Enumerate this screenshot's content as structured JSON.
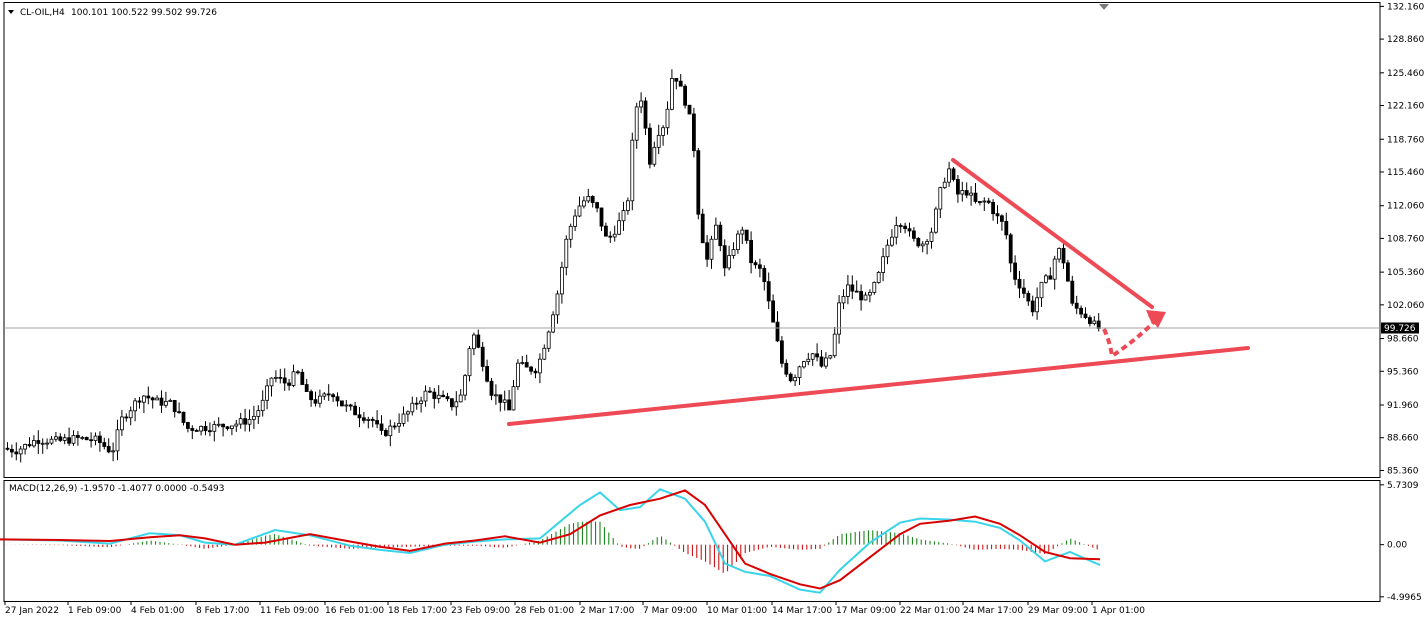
{
  "chart_data": [
    {
      "type": "candlestick",
      "symbol_header": "CL-OIL,H4",
      "ohlc_header": "100.101 100.522 99.502 99.726",
      "current_price": "99.726",
      "y_ticks": [
        "132.160",
        "128.860",
        "125.460",
        "122.160",
        "118.760",
        "115.460",
        "112.060",
        "108.760",
        "105.360",
        "102.060",
        "98.660",
        "95.360",
        "91.960",
        "88.660",
        "85.360"
      ],
      "ylim": [
        84.8,
        132.4
      ],
      "x_ticks": [
        "27 Jan 2022",
        "1 Feb 09:00",
        "4 Feb 01:00",
        "8 Feb 17:00",
        "11 Feb 09:00",
        "16 Feb 01:00",
        "18 Feb 17:00",
        "23 Feb 09:00",
        "28 Feb 01:00",
        "2 Mar 17:00",
        "7 Mar 09:00",
        "10 Mar 01:00",
        "14 Mar 17:00",
        "17 Mar 09:00",
        "22 Mar 01:00",
        "24 Mar 17:00",
        "29 Mar 09:00",
        "1 Apr 01:00"
      ],
      "price_path": [
        [
          0,
          87.6
        ],
        [
          20,
          87.4
        ],
        [
          40,
          88.5
        ],
        [
          60,
          88.3
        ],
        [
          80,
          88.6
        ],
        [
          100,
          88.4
        ],
        [
          115,
          87.2
        ],
        [
          125,
          90.6
        ],
        [
          135,
          91.8
        ],
        [
          145,
          93.0
        ],
        [
          160,
          92.3
        ],
        [
          175,
          92.1
        ],
        [
          190,
          89.6
        ],
        [
          205,
          89.7
        ],
        [
          220,
          89.8
        ],
        [
          240,
          90.1
        ],
        [
          255,
          90.6
        ],
        [
          265,
          92.0
        ],
        [
          275,
          94.9
        ],
        [
          290,
          94.1
        ],
        [
          300,
          95.3
        ],
        [
          310,
          92.8
        ],
        [
          320,
          92.3
        ],
        [
          335,
          93.3
        ],
        [
          345,
          92.0
        ],
        [
          360,
          91.1
        ],
        [
          375,
          90.5
        ],
        [
          385,
          88.9
        ],
        [
          395,
          89.8
        ],
        [
          410,
          91.1
        ],
        [
          420,
          92.3
        ],
        [
          430,
          93.3
        ],
        [
          440,
          92.8
        ],
        [
          455,
          92.0
        ],
        [
          465,
          93.0
        ],
        [
          475,
          99.5
        ],
        [
          485,
          96.5
        ],
        [
          495,
          93.1
        ],
        [
          505,
          92.4
        ],
        [
          512,
          91.4
        ],
        [
          520,
          96.1
        ],
        [
          530,
          95.6
        ],
        [
          540,
          95.6
        ],
        [
          550,
          99.0
        ],
        [
          560,
          103.0
        ],
        [
          570,
          109.0
        ],
        [
          580,
          111.8
        ],
        [
          590,
          112.9
        ],
        [
          600,
          111.6
        ],
        [
          610,
          108.4
        ],
        [
          620,
          110.0
        ],
        [
          630,
          111.8
        ],
        [
          638,
          121.8
        ],
        [
          645,
          123.1
        ],
        [
          652,
          116.3
        ],
        [
          660,
          119.4
        ],
        [
          668,
          120.4
        ],
        [
          676,
          125.8
        ],
        [
          682,
          124.2
        ],
        [
          690,
          122.1
        ],
        [
          696,
          119.0
        ],
        [
          702,
          110.4
        ],
        [
          710,
          106.6
        ],
        [
          720,
          110.4
        ],
        [
          728,
          105.3
        ],
        [
          735,
          107.6
        ],
        [
          745,
          109.9
        ],
        [
          755,
          106.1
        ],
        [
          765,
          105.4
        ],
        [
          775,
          100.6
        ],
        [
          785,
          96.1
        ],
        [
          795,
          94.4
        ],
        [
          805,
          96.5
        ],
        [
          815,
          97.2
        ],
        [
          825,
          95.8
        ],
        [
          835,
          97.2
        ],
        [
          842,
          102.0
        ],
        [
          850,
          103.9
        ],
        [
          860,
          103.2
        ],
        [
          870,
          102.5
        ],
        [
          880,
          104.5
        ],
        [
          890,
          108.0
        ],
        [
          900,
          110.6
        ],
        [
          907,
          110.3
        ],
        [
          915,
          108.6
        ],
        [
          925,
          108.2
        ],
        [
          935,
          109.6
        ],
        [
          945,
          114.3
        ],
        [
          952,
          115.7
        ],
        [
          960,
          113.2
        ],
        [
          970,
          113.5
        ],
        [
          980,
          112.1
        ],
        [
          990,
          112.6
        ],
        [
          1000,
          110.9
        ],
        [
          1008,
          109.9
        ],
        [
          1015,
          105.3
        ],
        [
          1025,
          103.7
        ],
        [
          1035,
          101.5
        ],
        [
          1045,
          104.1
        ],
        [
          1055,
          105.3
        ],
        [
          1060,
          108.0
        ],
        [
          1068,
          106.1
        ],
        [
          1075,
          102.0
        ],
        [
          1085,
          101.3
        ],
        [
          1095,
          100.4
        ],
        [
          1099,
          99.7
        ]
      ]
    },
    {
      "type": "macd",
      "label": "MACD(12,26,9) -1.9570 -1.4077 0.0000 -0.5493",
      "y_ticks": [
        "5.7309",
        "0.00",
        "-4.9965"
      ],
      "ylim": [
        -5.3,
        6.0
      ],
      "signal_path": [
        [
          0,
          0.5
        ],
        [
          60,
          0.45
        ],
        [
          110,
          0.35
        ],
        [
          150,
          0.7
        ],
        [
          180,
          0.9
        ],
        [
          205,
          0.6
        ],
        [
          235,
          0.0
        ],
        [
          265,
          0.2
        ],
        [
          310,
          1.0
        ],
        [
          350,
          0.3
        ],
        [
          380,
          -0.2
        ],
        [
          410,
          -0.6
        ],
        [
          445,
          0.1
        ],
        [
          475,
          0.4
        ],
        [
          505,
          0.8
        ],
        [
          540,
          0.2
        ],
        [
          570,
          1.0
        ],
        [
          600,
          2.8
        ],
        [
          630,
          3.8
        ],
        [
          660,
          4.4
        ],
        [
          685,
          5.2
        ],
        [
          705,
          3.8
        ],
        [
          725,
          1.0
        ],
        [
          745,
          -1.8
        ],
        [
          770,
          -2.8
        ],
        [
          800,
          -3.8
        ],
        [
          820,
          -4.2
        ],
        [
          840,
          -3.4
        ],
        [
          870,
          -1.2
        ],
        [
          900,
          1.0
        ],
        [
          920,
          2.0
        ],
        [
          950,
          2.3
        ],
        [
          975,
          2.7
        ],
        [
          1000,
          2.0
        ],
        [
          1020,
          0.9
        ],
        [
          1045,
          -0.7
        ],
        [
          1070,
          -1.3
        ],
        [
          1100,
          -1.4
        ]
      ],
      "macd_path": [
        [
          0,
          0.5
        ],
        [
          60,
          0.4
        ],
        [
          110,
          0.1
        ],
        [
          150,
          1.1
        ],
        [
          180,
          0.9
        ],
        [
          205,
          0.2
        ],
        [
          235,
          0.0
        ],
        [
          275,
          1.4
        ],
        [
          310,
          0.9
        ],
        [
          350,
          -0.1
        ],
        [
          380,
          -0.5
        ],
        [
          410,
          -0.8
        ],
        [
          445,
          0.0
        ],
        [
          475,
          0.3
        ],
        [
          505,
          0.5
        ],
        [
          540,
          0.6
        ],
        [
          560,
          2.2
        ],
        [
          580,
          3.8
        ],
        [
          600,
          5.0
        ],
        [
          620,
          3.3
        ],
        [
          640,
          3.6
        ],
        [
          660,
          5.3
        ],
        [
          685,
          4.4
        ],
        [
          705,
          2.2
        ],
        [
          725,
          -1.8
        ],
        [
          745,
          -2.6
        ],
        [
          770,
          -3.0
        ],
        [
          800,
          -4.3
        ],
        [
          820,
          -4.6
        ],
        [
          840,
          -2.4
        ],
        [
          870,
          0.2
        ],
        [
          900,
          2.1
        ],
        [
          920,
          2.5
        ],
        [
          950,
          2.4
        ],
        [
          975,
          2.2
        ],
        [
          1000,
          1.6
        ],
        [
          1020,
          0.4
        ],
        [
          1045,
          -1.6
        ],
        [
          1070,
          -0.7
        ],
        [
          1100,
          -1.96
        ]
      ]
    }
  ],
  "colors": {
    "bull_candle": "#ffffff",
    "bear_candle": "#000000",
    "trend_lines": "#ee4a55",
    "macd_line": "#39d4ea",
    "signal_line": "#d90000",
    "hist_positive": "#087a08",
    "hist_negative": "#c20000"
  }
}
